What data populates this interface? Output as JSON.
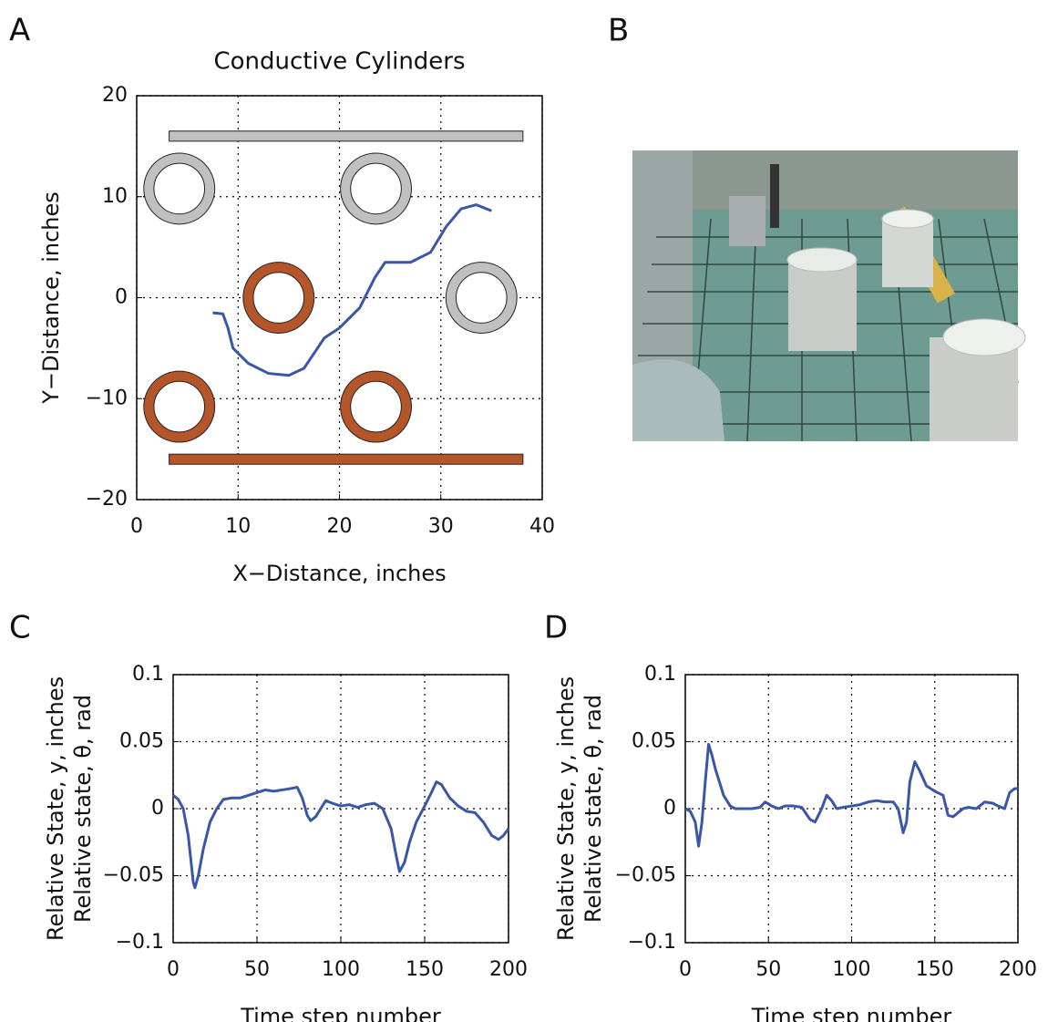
{
  "panel_labels": [
    "A",
    "B",
    "C",
    "D"
  ],
  "chart_data": [
    {
      "type": "line",
      "title": "Conductive Cylinders",
      "xlabel": "X−Distance, inches",
      "ylabel": [
        "Y−Distance, inches"
      ],
      "x": [
        7.5,
        8.5,
        9,
        9.5,
        11,
        13,
        15,
        16.5,
        17.5,
        18.5,
        20,
        22,
        23.5,
        24.5,
        27,
        29,
        30.5,
        32,
        33.5,
        35
      ],
      "series": [
        {
          "color": "#3a56a8",
          "values": [
            -1.5,
            -1.6,
            -3,
            -5,
            -6.5,
            -7.5,
            -7.7,
            -7,
            -5.5,
            -4,
            -3,
            -1,
            2,
            3.5,
            3.5,
            4.5,
            7,
            8.8,
            9.2,
            8.6
          ]
        }
      ],
      "xlim": [
        0,
        40
      ],
      "ylim": [
        -20,
        20
      ],
      "xticks": [
        0,
        10,
        20,
        30,
        40
      ],
      "yticks": [
        {
          "value": -20,
          "label": "−20"
        },
        {
          "value": -10,
          "label": "−10"
        },
        0,
        10,
        20
      ],
      "grid": true,
      "cylinders": [
        {
          "x": 4.2,
          "y": 10.8,
          "outer_radius": 3.5,
          "inner_radius": 2.5,
          "color": "#c0c0c0"
        },
        {
          "x": 23.6,
          "y": 10.8,
          "outer_radius": 3.5,
          "inner_radius": 2.5,
          "color": "#c0c0c0"
        },
        {
          "x": 34,
          "y": 0,
          "outer_radius": 3.5,
          "inner_radius": 2.5,
          "color": "#c0c0c0"
        },
        {
          "x": 14,
          "y": 0,
          "outer_radius": 3.5,
          "inner_radius": 2.5,
          "color": "#b5552a"
        },
        {
          "x": 4.2,
          "y": -10.8,
          "outer_radius": 3.5,
          "inner_radius": 2.5,
          "color": "#b5552a"
        },
        {
          "x": 23.6,
          "y": -10.8,
          "outer_radius": 3.5,
          "inner_radius": 2.5,
          "color": "#b5552a"
        }
      ],
      "walls": [
        {
          "x": [
            3.2,
            38.1
          ],
          "y": 16,
          "height": 1,
          "color": "#c0c0c0"
        },
        {
          "x": [
            3.2,
            38.1
          ],
          "y": -16,
          "height": 1,
          "color": "#b5552a"
        }
      ]
    },
    {
      "type": "line",
      "xlabel": "Time step number",
      "ylabel": [
        "Relative State, y, inches",
        "Relative state, θ, rad"
      ],
      "x": [
        0,
        3,
        6,
        9,
        12,
        13,
        15,
        18,
        22,
        26,
        30,
        35,
        40,
        45,
        50,
        55,
        60,
        65,
        70,
        74,
        77,
        80,
        82,
        85,
        88,
        91,
        95,
        100,
        105,
        110,
        115,
        120,
        125,
        130,
        133,
        135,
        138,
        141,
        145,
        150,
        154,
        157,
        160,
        165,
        170,
        175,
        180,
        185,
        190,
        194,
        197,
        200
      ],
      "series": [
        {
          "color": "#3a56a8",
          "values": [
            0.01,
            0.007,
            0.0,
            -0.02,
            -0.055,
            -0.059,
            -0.05,
            -0.03,
            -0.01,
            0.0,
            0.007,
            0.008,
            0.008,
            0.01,
            0.012,
            0.014,
            0.013,
            0.014,
            0.015,
            0.016,
            0.008,
            -0.005,
            -0.009,
            -0.006,
            0.0,
            0.006,
            0.004,
            0.002,
            0.003,
            0.001,
            0.003,
            0.004,
            0.0,
            -0.015,
            -0.035,
            -0.047,
            -0.04,
            -0.025,
            -0.01,
            0.002,
            0.012,
            0.02,
            0.018,
            0.008,
            0.002,
            -0.002,
            -0.003,
            -0.01,
            -0.02,
            -0.023,
            -0.02,
            -0.015
          ]
        }
      ],
      "xlim": [
        0,
        200
      ],
      "ylim": [
        -0.1,
        0.1
      ],
      "xticks": [
        0,
        50,
        100,
        150,
        200
      ],
      "yticks": [
        {
          "value": -0.1,
          "label": "−0.1"
        },
        {
          "value": -0.05,
          "label": "−0.05"
        },
        0,
        0.05,
        0.1
      ],
      "grid": true
    },
    {
      "type": "line",
      "xlabel": "Time step number",
      "ylabel": [
        "Relative State, y, inches",
        "Relative state, θ, rad"
      ],
      "x": [
        0,
        3,
        6,
        8,
        10,
        12,
        14,
        16,
        18,
        20,
        23,
        27,
        30,
        35,
        40,
        45,
        48,
        52,
        56,
        60,
        65,
        70,
        75,
        78,
        82,
        85,
        88,
        91,
        95,
        100,
        105,
        110,
        115,
        120,
        125,
        128,
        131,
        133,
        135,
        138,
        141,
        145,
        150,
        155,
        158,
        161,
        164,
        167,
        170,
        175,
        180,
        185,
        188,
        192,
        195,
        198,
        200
      ],
      "series": [
        {
          "color": "#3a56a8",
          "values": [
            0,
            -0.002,
            -0.01,
            -0.028,
            -0.01,
            0.02,
            0.048,
            0.04,
            0.03,
            0.022,
            0.01,
            0.002,
            0.0,
            0.0,
            0.0,
            0.001,
            0.005,
            0.002,
            0.0,
            0.002,
            0.002,
            0.001,
            -0.008,
            -0.01,
            0.0,
            0.01,
            0.006,
            0.0,
            0.001,
            0.002,
            0.003,
            0.005,
            0.006,
            0.005,
            0.005,
            0.0,
            -0.018,
            -0.01,
            0.02,
            0.035,
            0.028,
            0.017,
            0.013,
            0.01,
            -0.005,
            -0.006,
            -0.003,
            0.0,
            0.001,
            0.0,
            0.005,
            0.004,
            0.002,
            0.0,
            0.012,
            0.015,
            0.015
          ]
        }
      ],
      "xlim": [
        0,
        200
      ],
      "ylim": [
        -0.1,
        0.1
      ],
      "xticks": [
        0,
        50,
        100,
        150,
        200
      ],
      "yticks": [
        {
          "value": -0.1,
          "label": "−0.1"
        },
        {
          "value": -0.05,
          "label": "−0.05"
        },
        0,
        0.05,
        0.1
      ],
      "grid": true
    }
  ]
}
